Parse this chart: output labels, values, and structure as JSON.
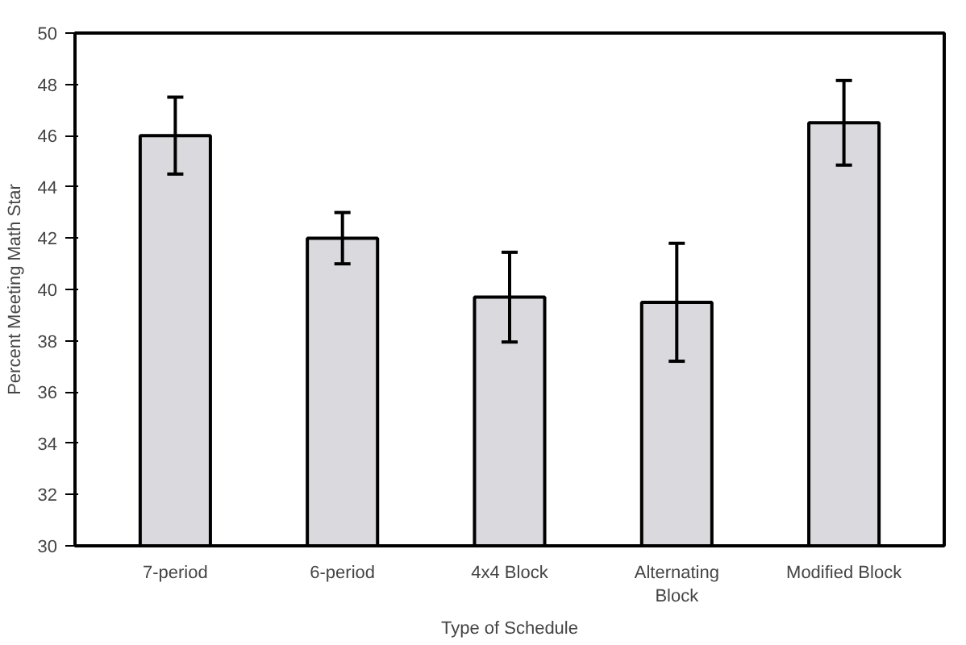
{
  "chart_data": {
    "type": "bar",
    "xlabel": "Type of Schedule",
    "ylabel": "Percent Meeting Math Star",
    "categories": [
      "7-period",
      "6-period",
      "4x4 Block",
      "Alternating Block",
      "Modified Block"
    ],
    "values": [
      46.0,
      42.0,
      39.7,
      39.5,
      46.5
    ],
    "errors": [
      1.5,
      1.0,
      1.75,
      2.3,
      1.65
    ],
    "color": "#d9d9de",
    "ylim": [
      30,
      50
    ],
    "yticks": [
      30,
      32,
      34,
      36,
      38,
      40,
      42,
      44,
      46,
      48,
      50
    ],
    "grid": false
  }
}
